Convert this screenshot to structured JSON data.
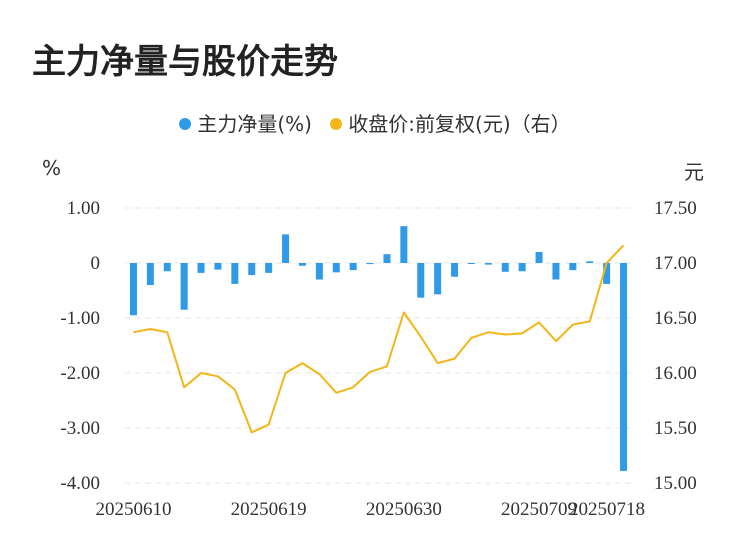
{
  "title": "主力净量与股价走势",
  "legend": [
    {
      "label": "主力净量(%)",
      "color": "#2f9ae8"
    },
    {
      "label": "收盘价:前复权(元)（右）",
      "color": "#f2b619"
    }
  ],
  "left_unit": "%",
  "right_unit": "元",
  "chart_data": {
    "type": "bar+line",
    "title": "主力净量与股价走势",
    "x_tick_labels": [
      "20250610",
      "20250619",
      "20250630",
      "20250709",
      "20250718"
    ],
    "left_axis": {
      "ticks": [
        "1.00",
        "0",
        "-1.00",
        "-2.00",
        "-3.00",
        "-4.00"
      ],
      "ylim": [
        -4,
        1
      ]
    },
    "right_axis": {
      "ticks": [
        "17.50",
        "17.00",
        "16.50",
        "16.00",
        "15.50",
        "15.00"
      ],
      "ylim": [
        15,
        17.5
      ]
    },
    "grid": "horizontal dashed",
    "series": [
      {
        "name": "主力净量(%)",
        "type": "bar",
        "color": "#2f9ae8",
        "values": [
          -0.95,
          -0.4,
          -0.15,
          -0.85,
          -0.18,
          -0.12,
          -0.38,
          -0.22,
          -0.18,
          0.52,
          -0.05,
          -0.3,
          -0.17,
          -0.13,
          -0.02,
          0.16,
          0.67,
          -0.63,
          -0.57,
          -0.25,
          -0.01,
          -0.03,
          -0.16,
          -0.15,
          0.2,
          -0.3,
          -0.13,
          0.03,
          -0.38,
          -3.78
        ]
      },
      {
        "name": "收盘价:前复权(元)（右）",
        "type": "line",
        "color": "#f2b619",
        "values": [
          16.37,
          16.4,
          16.37,
          15.87,
          16.0,
          15.97,
          15.85,
          15.46,
          15.53,
          16.0,
          16.09,
          15.99,
          15.82,
          15.87,
          16.01,
          16.06,
          16.55,
          16.33,
          16.09,
          16.13,
          16.32,
          16.37,
          16.35,
          16.36,
          16.46,
          16.29,
          16.44,
          16.47,
          17.0,
          17.16
        ]
      }
    ]
  }
}
